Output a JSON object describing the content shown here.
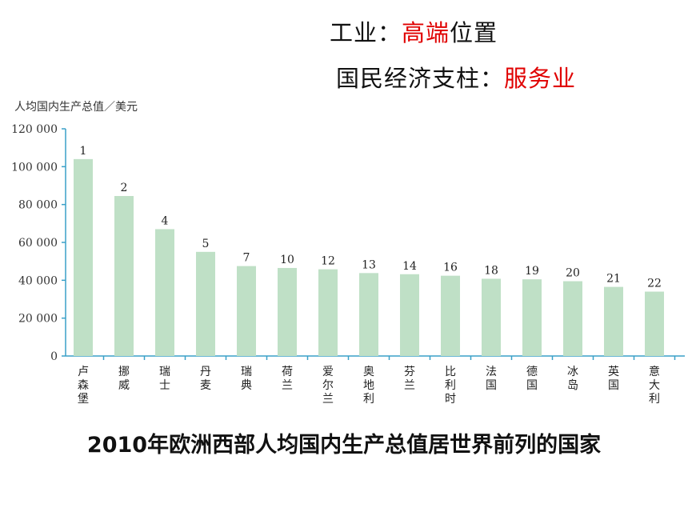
{
  "headline": {
    "line1_prefix": "工业：",
    "line1_highlight": "高端",
    "line1_suffix": "位置",
    "line2_prefix": "国民经济支柱：",
    "line2_highlight": "服务业",
    "highlight_color": "#e00000"
  },
  "caption": "2010年欧洲西部人均国内生产总值居世界前列的国家",
  "chart_data": {
    "type": "bar",
    "ylabel": "人均国内生产总值／美元",
    "ylim": [
      0,
      120000
    ],
    "y_ticks": [
      0,
      20000,
      40000,
      60000,
      80000,
      100000,
      120000
    ],
    "y_tick_labels": [
      "0",
      "20 000",
      "40 000",
      "60 000",
      "80 000",
      "100 000",
      "120 000"
    ],
    "categories": [
      "卢森堡",
      "挪威",
      "瑞士",
      "丹麦",
      "瑞典",
      "荷兰",
      "爱尔兰",
      "奥地利",
      "芬兰",
      "比利时",
      "法国",
      "德国",
      "冰岛",
      "英国",
      "意大利"
    ],
    "ranks": [
      "1",
      "2",
      "4",
      "5",
      "7",
      "10",
      "12",
      "13",
      "14",
      "16",
      "18",
      "19",
      "20",
      "21",
      "22"
    ],
    "values": [
      104000,
      84500,
      67000,
      55000,
      47500,
      46500,
      45800,
      43800,
      43200,
      42400,
      40800,
      40500,
      39500,
      36500,
      34000
    ],
    "bar_color": "#bfe0c6",
    "axis_color": "#3aa0c8"
  }
}
